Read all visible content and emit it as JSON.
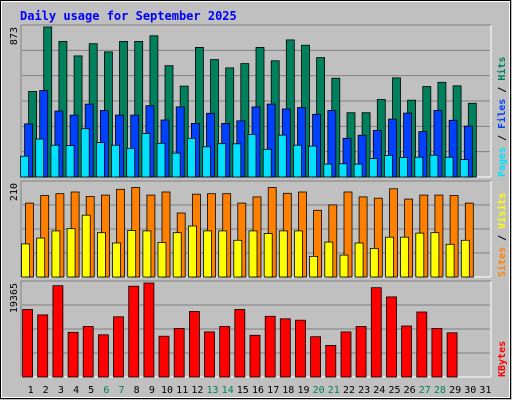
{
  "title": "Daily usage for September 2025",
  "colors": {
    "background": "#c0c0c0",
    "plot_bg": "#c0c0c0",
    "title": "#0000ff",
    "pages": "#00e0ff",
    "files": "#0040ff",
    "hits": "#00805c",
    "sites": "#ff8000",
    "visits": "#ffff00",
    "kbytes": "#ff0000",
    "weekend": "#00805c",
    "weekday": "#000000",
    "slash": "#000000"
  },
  "chart_data": [
    {
      "type": "bar",
      "panel": "traffic",
      "ymax_label": "873",
      "ylim": [
        0,
        873
      ],
      "categories": [
        "1",
        "2",
        "3",
        "4",
        "5",
        "6",
        "7",
        "8",
        "9",
        "10",
        "11",
        "12",
        "13",
        "14",
        "15",
        "16",
        "17",
        "18",
        "19",
        "20",
        "21",
        "22",
        "23",
        "24",
        "25",
        "26",
        "27",
        "28",
        "29",
        "30",
        "31"
      ],
      "weekend_days": [
        "6",
        "7",
        "13",
        "14",
        "20",
        "21",
        "27",
        "28"
      ],
      "legend": [
        "Pages",
        "Files",
        "Hits"
      ],
      "series": [
        {
          "name": "Hits",
          "color_key": "hits",
          "values": [
            498,
            873,
            789,
            705,
            776,
            728,
            789,
            789,
            822,
            648,
            529,
            754,
            683,
            635,
            660,
            754,
            676,
            798,
            767,
            695,
            575,
            374,
            374,
            451,
            577,
            447,
            527,
            551,
            531,
            429,
            0
          ]
        },
        {
          "name": "Files",
          "color_key": "files",
          "values": [
            309,
            503,
            384,
            360,
            424,
            387,
            360,
            360,
            415,
            332,
            408,
            312,
            371,
            312,
            327,
            408,
            424,
            396,
            404,
            365,
            387,
            225,
            243,
            271,
            337,
            372,
            264,
            387,
            330,
            296,
            0
          ]
        },
        {
          "name": "Pages",
          "color_key": "pages",
          "values": [
            121,
            221,
            185,
            183,
            281,
            200,
            185,
            167,
            253,
            196,
            139,
            225,
            176,
            194,
            193,
            248,
            161,
            244,
            185,
            180,
            75,
            77,
            75,
            107,
            126,
            114,
            115,
            127,
            115,
            101,
            0
          ]
        }
      ]
    },
    {
      "type": "bar",
      "panel": "sites",
      "ymax_label": "210",
      "ylim": [
        0,
        210
      ],
      "categories": [
        "1",
        "2",
        "3",
        "4",
        "5",
        "6",
        "7",
        "8",
        "9",
        "10",
        "11",
        "12",
        "13",
        "14",
        "15",
        "16",
        "17",
        "18",
        "19",
        "20",
        "21",
        "22",
        "23",
        "24",
        "25",
        "26",
        "27",
        "28",
        "29",
        "30",
        "31"
      ],
      "legend": [
        "Sites",
        "Visits"
      ],
      "series": [
        {
          "name": "Sites",
          "color_key": "sites",
          "values": [
            165,
            182,
            186,
            190,
            180,
            183,
            196,
            200,
            183,
            190,
            143,
            185,
            186,
            186,
            165,
            179,
            200,
            187,
            190,
            149,
            161,
            190,
            179,
            176,
            197,
            174,
            183,
            183,
            182,
            165,
            0
          ]
        },
        {
          "name": "Visits",
          "color_key": "visits",
          "values": [
            74,
            87,
            103,
            108,
            138,
            99,
            76,
            104,
            103,
            77,
            99,
            114,
            103,
            103,
            82,
            103,
            97,
            103,
            103,
            46,
            78,
            49,
            76,
            64,
            89,
            89,
            98,
            99,
            73,
            82,
            0
          ]
        }
      ]
    },
    {
      "type": "bar",
      "panel": "kbytes",
      "ymax_label": "19365",
      "ylim": [
        0,
        19365
      ],
      "categories": [
        "1",
        "2",
        "3",
        "4",
        "5",
        "6",
        "7",
        "8",
        "9",
        "10",
        "11",
        "12",
        "13",
        "14",
        "15",
        "16",
        "17",
        "18",
        "19",
        "20",
        "21",
        "22",
        "23",
        "24",
        "25",
        "26",
        "27",
        "28",
        "29",
        "30",
        "31"
      ],
      "legend": [
        "KBytes"
      ],
      "series": [
        {
          "name": "KBytes",
          "color_key": "kbytes",
          "values": [
            13900,
            12800,
            18800,
            9200,
            10400,
            8700,
            12400,
            18700,
            19365,
            8400,
            10000,
            13500,
            9300,
            10400,
            13900,
            8600,
            12500,
            12000,
            11700,
            8300,
            6500,
            9300,
            10400,
            18400,
            16500,
            10500,
            13400,
            10000,
            9100,
            0,
            0
          ]
        }
      ]
    }
  ]
}
